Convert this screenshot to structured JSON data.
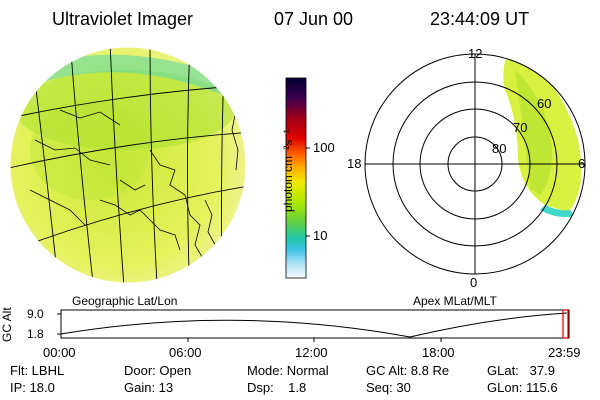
{
  "header": {
    "title": "Ultraviolet Imager",
    "date": "07 Jun 00",
    "time": "23:44:09 UT"
  },
  "left_panel": {
    "caption": "Geographic Lat/Lon"
  },
  "colorbar": {
    "label": "photon cm⁻²s⁻¹",
    "tick_100": "100",
    "tick_10": "10",
    "colors": [
      "#000030",
      "#1a0040",
      "#3c0050",
      "#6a0030",
      "#a00018",
      "#d00000",
      "#ff3300",
      "#ff8000",
      "#ffb000",
      "#ffe000",
      "#d8f000",
      "#a0e600",
      "#50d050",
      "#20c8a0",
      "#30c0e0",
      "#a8e0f0",
      "#e8f8ff"
    ]
  },
  "polar": {
    "label_12": "12",
    "label_18": "18",
    "label_6": "6",
    "label_0": "0",
    "label_60": "60",
    "label_70": "70",
    "label_80": "80",
    "caption": "Apex MLat/MLT"
  },
  "orbit": {
    "axis_label": "GC Alt",
    "y_top": "9.0",
    "y_bottom": "1.8",
    "ticks": [
      "00:00",
      "06:00",
      "12:00",
      "18:00",
      "23:59"
    ],
    "current_marker_color": "#e00000"
  },
  "status": {
    "flt": "Flt: LBHL",
    "ip": "IP: 18.0",
    "door": "Door: Open",
    "gain": "Gain: 13",
    "mode": "Mode: Normal",
    "dsp": "Dsp:    1.8",
    "gc_alt": "GC Alt: 8.8 Re",
    "seq": "Seq: 30",
    "glat": "GLat:   37.9",
    "glon": "GLon: 115.6"
  },
  "palette": {
    "aurora_main": "#d8f040",
    "aurora_dense": "#a8e030",
    "aurora_edge": "#40d8c8",
    "outline": "#000000"
  }
}
